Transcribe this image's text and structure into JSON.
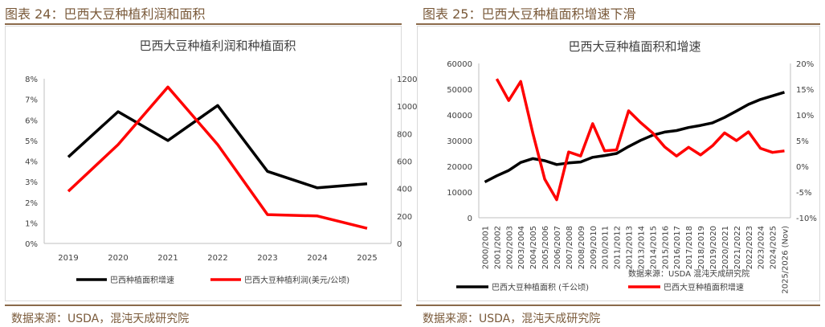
{
  "left": {
    "fig_title": "图表 24：巴西大豆种植利润和面积",
    "source": "数据来源：USDA，混沌天成研究院",
    "chart_data": {
      "type": "line",
      "title": "巴西大豆种植利润和种植面积",
      "categories": [
        "2019",
        "2020",
        "2021",
        "2022",
        "2023",
        "2024",
        "2025"
      ],
      "y_left": {
        "ticks": [
          "0%",
          "1%",
          "2%",
          "3%",
          "4%",
          "5%",
          "6%",
          "7%",
          "8%"
        ],
        "ylim": [
          0,
          8
        ]
      },
      "y_right": {
        "ticks": [
          "0",
          "200",
          "400",
          "600",
          "800",
          "1000",
          "1200"
        ],
        "ylim": [
          0,
          1200
        ]
      },
      "series": [
        {
          "name": "巴西种植面积增速",
          "axis": "left",
          "color": "#000000",
          "values": [
            4.2,
            6.4,
            5.0,
            6.7,
            3.5,
            2.7,
            2.9
          ]
        },
        {
          "name": "巴西大豆种植利润(美元/公顷)",
          "axis": "right",
          "color": "#ff0000",
          "values": [
            380,
            720,
            1140,
            720,
            210,
            200,
            110
          ]
        }
      ]
    }
  },
  "right": {
    "fig_title": "图表 25：巴西大豆种植面积增速下滑",
    "source": "数据来源：USDA，混沌天成研究院",
    "chart_data": {
      "type": "line",
      "title": "巴西大豆种植面积和增速",
      "annotation": "数据来源：USDA 混沌天成研究院",
      "categories": [
        "2000/2001",
        "2001/2002",
        "2002/2003",
        "2003/2004",
        "2004/2005",
        "2005/2006",
        "2006/2007",
        "2007/2008",
        "2008/2009",
        "2009/2010",
        "2010/2011",
        "2011/2012",
        "2012/2013",
        "2013/2014",
        "2014/2015",
        "2015/2016",
        "2016/2017",
        "2017/2018",
        "2018/2019",
        "2019/2020",
        "2020/2021",
        "2021/2022",
        "2022/2023",
        "2023/2024",
        "2024/2025",
        "2025/2026 (Nov)"
      ],
      "y_left": {
        "ticks": [
          "0",
          "10000",
          "20000",
          "30000",
          "40000",
          "50000",
          "60000"
        ],
        "ylim": [
          0,
          60000
        ]
      },
      "y_right": {
        "ticks": [
          "-10%",
          "-5%",
          "0%",
          "5%",
          "10%",
          "15%",
          "20%"
        ],
        "ylim": [
          -10,
          20
        ]
      },
      "series": [
        {
          "name": "巴西大豆种植面积 (千公顷)",
          "axis": "left",
          "color": "#000000",
          "values": [
            13900,
            16300,
            18400,
            21500,
            23000,
            22200,
            20700,
            21300,
            21700,
            23500,
            24200,
            25000,
            27700,
            30100,
            32100,
            33300,
            33900,
            35100,
            35900,
            36900,
            39000,
            41500,
            44100,
            46000,
            47400,
            48800
          ]
        },
        {
          "name": "巴西大豆种植面积增速",
          "axis": "right",
          "color": "#ff0000",
          "values": [
            null,
            17,
            12.8,
            16.5,
            6.5,
            -2.5,
            -6.5,
            2.8,
            2,
            8.3,
            3,
            3.2,
            10.8,
            8.5,
            6.5,
            3.8,
            2,
            3.7,
            2.2,
            4,
            6.5,
            5,
            6.7,
            3.5,
            2.7,
            3
          ]
        }
      ]
    }
  }
}
